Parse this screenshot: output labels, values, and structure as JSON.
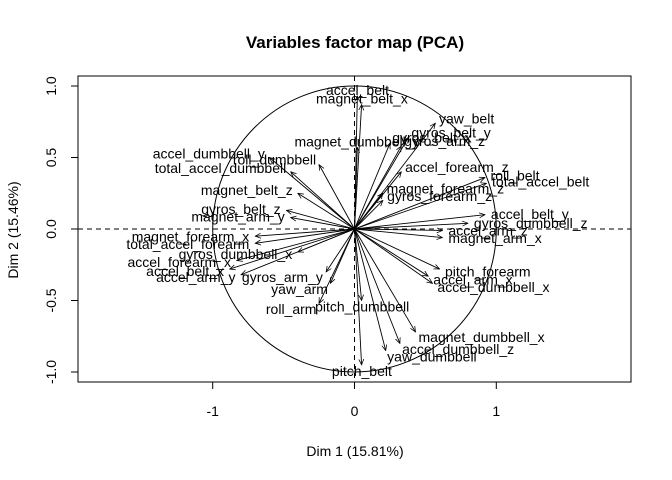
{
  "chart_data": {
    "type": "scatter",
    "title": "Variables factor map (PCA)",
    "xlabel": "Dim 1 (15.81%)",
    "ylabel": "Dim 2 (15.46%)",
    "xlim": [
      -1.95,
      1.95
    ],
    "ylim": [
      -1.07,
      1.07
    ],
    "xticks": [
      "-1",
      "0",
      "1"
    ],
    "xtick_values": [
      -1,
      0,
      1
    ],
    "yticks": [
      "-1.0",
      "-0.5",
      "0.0",
      "0.5",
      "1.0"
    ],
    "ytick_values": [
      -1.0,
      -0.5,
      0.0,
      0.5,
      1.0
    ],
    "correlation_circle": true,
    "reference_lines": "dashed at x=0 and y=0",
    "variables": [
      {
        "name": "accel_belt",
        "x": 0.02,
        "y": 0.93
      },
      {
        "name": "magnet_belt_x",
        "x": 0.05,
        "y": 0.87
      },
      {
        "name": "yaw_belt",
        "x": 0.57,
        "y": 0.74
      },
      {
        "name": "gyros_belt_y",
        "x": 0.38,
        "y": 0.64
      },
      {
        "name": "gyros_belt_x",
        "x": 0.25,
        "y": 0.6
      },
      {
        "name": "gyros_arm_z",
        "x": 0.33,
        "y": 0.58
      },
      {
        "name": "magnet_dumbbell_y",
        "x": 0.02,
        "y": 0.57
      },
      {
        "name": "accel_dumbbell_y",
        "x": -0.6,
        "y": 0.5
      },
      {
        "name": "total_accel_dumbbell",
        "x": -0.45,
        "y": 0.4
      },
      {
        "name": "roll_dumbbell",
        "x": -0.25,
        "y": 0.45
      },
      {
        "name": "accel_forearm_z",
        "x": 0.33,
        "y": 0.4
      },
      {
        "name": "roll_belt",
        "x": 0.92,
        "y": 0.36
      },
      {
        "name": "total_accel_belt",
        "x": 0.93,
        "y": 0.32
      },
      {
        "name": "magnet_belt_z",
        "x": -0.4,
        "y": 0.25
      },
      {
        "name": "magnet_forearm_z",
        "x": 0.2,
        "y": 0.25
      },
      {
        "name": "gyros_forearm_z",
        "x": 0.2,
        "y": 0.2
      },
      {
        "name": "gyros_belt_z",
        "x": -0.48,
        "y": 0.13
      },
      {
        "name": "magnet_arm_y",
        "x": -0.45,
        "y": 0.08
      },
      {
        "name": "accel_belt_y",
        "x": 0.92,
        "y": 0.1
      },
      {
        "name": "gyros_dumbbell_z",
        "x": 0.8,
        "y": 0.04
      },
      {
        "name": "accel_arm_z",
        "x": 0.62,
        "y": -0.01
      },
      {
        "name": "magnet_arm_x",
        "x": 0.62,
        "y": -0.06
      },
      {
        "name": "magnet_forearm_x",
        "x": -0.7,
        "y": -0.05
      },
      {
        "name": "total_accel_forearm",
        "x": -0.7,
        "y": -0.1
      },
      {
        "name": "accel_forearm_x",
        "x": -0.83,
        "y": -0.22
      },
      {
        "name": "accel_belt_x",
        "x": -0.88,
        "y": -0.28
      },
      {
        "name": "accel_arm_y",
        "x": -0.8,
        "y": -0.32
      },
      {
        "name": "gyros_dumbbell_x",
        "x": -0.4,
        "y": -0.16
      },
      {
        "name": "gyros_arm_y",
        "x": -0.2,
        "y": -0.3
      },
      {
        "name": "yaw_arm",
        "x": -0.17,
        "y": -0.38
      },
      {
        "name": "roll_arm",
        "x": -0.25,
        "y": -0.52
      },
      {
        "name": "pitch_dumbbell",
        "x": 0.05,
        "y": -0.5
      },
      {
        "name": "pitch_forearm",
        "x": 0.6,
        "y": -0.28
      },
      {
        "name": "accel_arm_x",
        "x": 0.52,
        "y": -0.33
      },
      {
        "name": "accel_dumbbell_x",
        "x": 0.55,
        "y": -0.38
      },
      {
        "name": "magnet_dumbbell_x",
        "x": 0.43,
        "y": -0.72
      },
      {
        "name": "accel_dumbbell_z",
        "x": 0.32,
        "y": -0.8
      },
      {
        "name": "yaw_dumbbell",
        "x": 0.22,
        "y": -0.85
      },
      {
        "name": "pitch_belt",
        "x": 0.05,
        "y": -0.95
      }
    ]
  }
}
